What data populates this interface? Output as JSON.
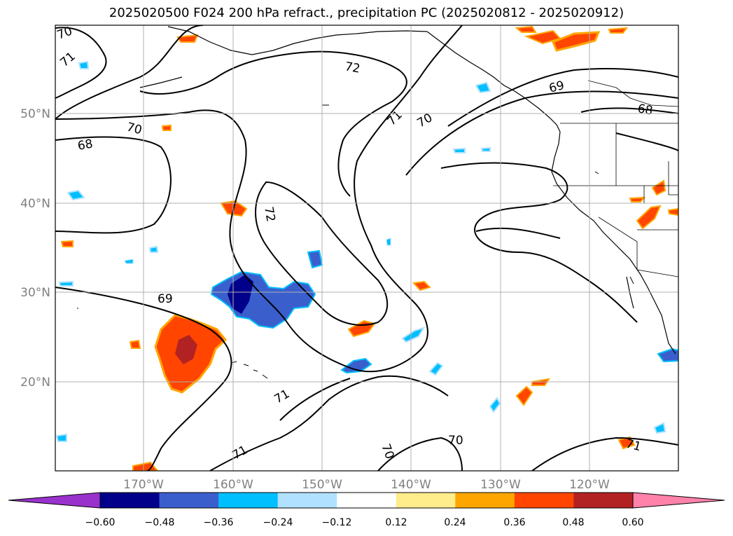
{
  "title": "2025020500 F024 200 hPa refract., precipitation PC (2025020812 - 2025020912)",
  "lat_ticks": [
    "50°N",
    "40°N",
    "30°N",
    "20°N"
  ],
  "lon_ticks": [
    "170°W",
    "160°W",
    "150°W",
    "140°W",
    "130°W",
    "120°W"
  ],
  "contour_labels": [
    "70",
    "71",
    "72",
    "69",
    "68",
    "70",
    "68",
    "71",
    "70",
    "72",
    "69",
    "71",
    "71",
    "70",
    "70",
    "71"
  ],
  "colorbar": {
    "colors": [
      "#9932CC",
      "#00008B",
      "#3A5FCD",
      "#00BFFF",
      "#B0E2FF",
      "#FFFFFF",
      "#FFEC8B",
      "#FFA500",
      "#FF4500",
      "#B22222",
      "#FF82AB"
    ],
    "ticks": [
      "−0.60",
      "−0.48",
      "−0.36",
      "−0.24",
      "−0.12",
      "0.12",
      "0.24",
      "0.36",
      "0.48",
      "0.60"
    ]
  }
}
